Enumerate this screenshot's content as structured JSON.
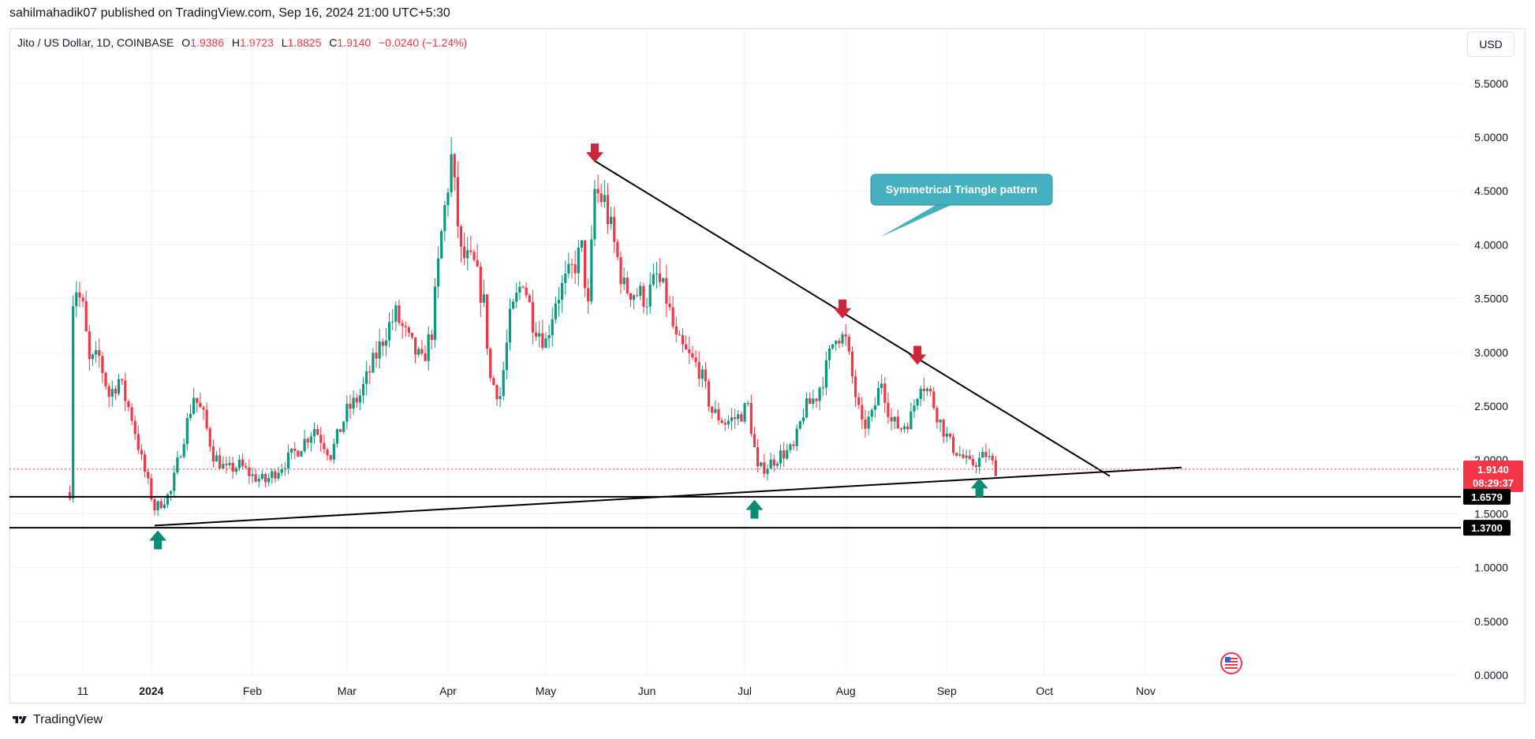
{
  "header": {
    "published": "sahilmahadik07 published on TradingView.com, Sep 16, 2024 21:00 UTC+5:30",
    "symbol": "Jito / US Dollar, 1D, COINBASE",
    "ohlc": {
      "o_label": "O",
      "o_value": "1.9386",
      "h_label": "H",
      "h_value": "1.9723",
      "l_label": "L",
      "l_value": "1.8825",
      "c_label": "C",
      "c_value": "1.9140",
      "change": "−0.0240 (−1.24%)"
    },
    "currency": "USD"
  },
  "footer": {
    "brand": "TradingView"
  },
  "colors": {
    "up": "#089981",
    "down": "#f23645",
    "annotation": "#45b1be",
    "arrow_down": "#d0243a",
    "arrow_up": "#0b8d74",
    "line": "#000000"
  },
  "annotations": {
    "callout": "Symmetrical Triangle pattern",
    "last_price": "1.9140",
    "countdown": "08:29:37",
    "support_1": "1.6579",
    "support_2": "1.3700"
  },
  "chart_data": {
    "type": "candlestick",
    "y_ticks": [
      "5.5000",
      "5.0000",
      "4.5000",
      "4.0000",
      "3.5000",
      "3.0000",
      "2.5000",
      "2.0000",
      "1.5000",
      "1.0000",
      "0.5000",
      "0.0000"
    ],
    "x_ticks": [
      {
        "label": "11",
        "bold": false
      },
      {
        "label": "2024",
        "bold": true
      },
      {
        "label": "Feb",
        "bold": false
      },
      {
        "label": "Mar",
        "bold": false
      },
      {
        "label": "Apr",
        "bold": false
      },
      {
        "label": "May",
        "bold": false
      },
      {
        "label": "Jun",
        "bold": false
      },
      {
        "label": "Jul",
        "bold": false
      },
      {
        "label": "Aug",
        "bold": false
      },
      {
        "label": "Sep",
        "bold": false
      },
      {
        "label": "Oct",
        "bold": false
      },
      {
        "label": "Nov",
        "bold": false
      }
    ],
    "ylim": [
      0,
      5.8
    ],
    "trendlines": [
      {
        "name": "upper-trendline",
        "from": {
          "date": "2024-05-16",
          "price": 4.78
        },
        "to": {
          "date": "2024-10-21",
          "price": 1.85
        }
      },
      {
        "name": "lower-trendline",
        "from": {
          "date": "2024-01-02",
          "price": 1.39
        },
        "to": {
          "date": "2024-11-12",
          "price": 1.93
        }
      }
    ],
    "horizontal_lines": [
      1.6579,
      1.37
    ],
    "close_path": [
      [
        "2023-12-07",
        1.7
      ],
      [
        "2023-12-08",
        3.5
      ],
      [
        "2023-12-09",
        3.6
      ],
      [
        "2023-12-11",
        3.4
      ],
      [
        "2023-12-13",
        2.9
      ],
      [
        "2023-12-16",
        2.95
      ],
      [
        "2023-12-19",
        2.6
      ],
      [
        "2023-12-22",
        2.75
      ],
      [
        "2023-12-26",
        2.4
      ],
      [
        "2023-12-29",
        2.0
      ],
      [
        "2024-01-02",
        1.55
      ],
      [
        "2024-01-04",
        1.6
      ],
      [
        "2024-01-07",
        1.7
      ],
      [
        "2024-01-10",
        2.1
      ],
      [
        "2024-01-14",
        2.6
      ],
      [
        "2024-01-17",
        2.4
      ],
      [
        "2024-01-20",
        2.05
      ],
      [
        "2024-01-24",
        1.9
      ],
      [
        "2024-01-28",
        1.95
      ],
      [
        "2024-02-01",
        1.85
      ],
      [
        "2024-02-05",
        1.8
      ],
      [
        "2024-02-10",
        1.95
      ],
      [
        "2024-02-15",
        2.1
      ],
      [
        "2024-02-20",
        2.3
      ],
      [
        "2024-02-25",
        2.05
      ],
      [
        "2024-03-01",
        2.45
      ],
      [
        "2024-03-05",
        2.6
      ],
      [
        "2024-03-09",
        2.9
      ],
      [
        "2024-03-13",
        3.2
      ],
      [
        "2024-03-16",
        3.35
      ],
      [
        "2024-03-20",
        3.1
      ],
      [
        "2024-03-24",
        2.9
      ],
      [
        "2024-03-27",
        3.2
      ],
      [
        "2024-03-30",
        4.1
      ],
      [
        "2024-04-02",
        4.8
      ],
      [
        "2024-04-05",
        3.9
      ],
      [
        "2024-04-09",
        3.8
      ],
      [
        "2024-04-12",
        3.45
      ],
      [
        "2024-04-14",
        2.75
      ],
      [
        "2024-04-17",
        2.6
      ],
      [
        "2024-04-20",
        3.3
      ],
      [
        "2024-04-24",
        3.7
      ],
      [
        "2024-04-27",
        3.3
      ],
      [
        "2024-05-01",
        3.1
      ],
      [
        "2024-05-04",
        3.5
      ],
      [
        "2024-05-08",
        3.7
      ],
      [
        "2024-05-12",
        3.95
      ],
      [
        "2024-05-14",
        3.4
      ],
      [
        "2024-05-16",
        4.5
      ],
      [
        "2024-05-19",
        4.4
      ],
      [
        "2024-05-22",
        4.0
      ],
      [
        "2024-05-25",
        3.6
      ],
      [
        "2024-05-29",
        3.55
      ],
      [
        "2024-06-01",
        3.5
      ],
      [
        "2024-06-04",
        3.7
      ],
      [
        "2024-06-07",
        3.5
      ],
      [
        "2024-06-10",
        3.1
      ],
      [
        "2024-06-14",
        2.95
      ],
      [
        "2024-06-17",
        2.85
      ],
      [
        "2024-06-21",
        2.45
      ],
      [
        "2024-06-25",
        2.35
      ],
      [
        "2024-06-29",
        2.4
      ],
      [
        "2024-07-02",
        2.5
      ],
      [
        "2024-07-05",
        1.9
      ],
      [
        "2024-07-08",
        1.95
      ],
      [
        "2024-07-12",
        2.05
      ],
      [
        "2024-07-16",
        2.1
      ],
      [
        "2024-07-19",
        2.45
      ],
      [
        "2024-07-23",
        2.6
      ],
      [
        "2024-07-26",
        2.85
      ],
      [
        "2024-07-29",
        3.2
      ],
      [
        "2024-08-01",
        3.1
      ],
      [
        "2024-08-04",
        2.6
      ],
      [
        "2024-08-06",
        2.3
      ],
      [
        "2024-08-09",
        2.4
      ],
      [
        "2024-08-12",
        2.75
      ],
      [
        "2024-08-15",
        2.35
      ],
      [
        "2024-08-18",
        2.3
      ],
      [
        "2024-08-21",
        2.4
      ],
      [
        "2024-08-24",
        2.75
      ],
      [
        "2024-08-27",
        2.6
      ],
      [
        "2024-08-30",
        2.35
      ],
      [
        "2024-09-02",
        2.15
      ],
      [
        "2024-09-05",
        2.05
      ],
      [
        "2024-09-08",
        1.95
      ],
      [
        "2024-09-11",
        2.0
      ],
      [
        "2024-09-13",
        2.05
      ],
      [
        "2024-09-16",
        1.914
      ]
    ]
  }
}
